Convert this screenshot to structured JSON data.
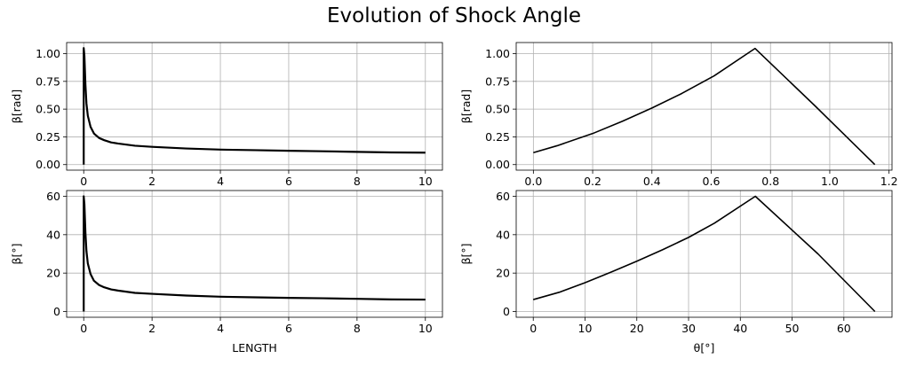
{
  "figure_title": "Evolution of Shock Angle",
  "chart_data": [
    {
      "id": "beta_rad_vs_length",
      "type": "line",
      "title": "",
      "xlabel": "",
      "ylabel": "β[rad]",
      "xlim": [
        -0.5,
        10.5
      ],
      "ylim": [
        -0.05,
        1.1
      ],
      "xticks": [
        0,
        2,
        4,
        6,
        8,
        10
      ],
      "xtick_labels": [
        "0",
        "2",
        "4",
        "6",
        "8",
        "10"
      ],
      "yticks": [
        0.0,
        0.25,
        0.5,
        0.75,
        1.0
      ],
      "ytick_labels": [
        "0.00",
        "0.25",
        "0.50",
        "0.75",
        "1.00"
      ],
      "grid": true,
      "series": [
        {
          "color": "#000000",
          "x": [
            0,
            0,
            0.02,
            0.05,
            0.08,
            0.12,
            0.2,
            0.3,
            0.45,
            0.6,
            0.8,
            1.0,
            1.5,
            2,
            3,
            4,
            5,
            6,
            7,
            8,
            9,
            10
          ],
          "y": [
            0.0,
            1.05,
            0.98,
            0.72,
            0.55,
            0.44,
            0.34,
            0.28,
            0.24,
            0.22,
            0.2,
            0.19,
            0.17,
            0.16,
            0.145,
            0.135,
            0.13,
            0.125,
            0.12,
            0.115,
            0.11,
            0.108
          ]
        }
      ]
    },
    {
      "id": "beta_rad_vs_theta_rad",
      "type": "line",
      "title": "",
      "xlabel": "",
      "ylabel": "β[rad]",
      "xlim": [
        -0.058,
        1.21
      ],
      "ylim": [
        -0.05,
        1.1
      ],
      "xticks": [
        0.0,
        0.2,
        0.4,
        0.6,
        0.8,
        1.0,
        1.2
      ],
      "xtick_labels": [
        "0.0",
        "0.2",
        "0.4",
        "0.6",
        "0.8",
        "1.0",
        "1.2"
      ],
      "yticks": [
        0.0,
        0.25,
        0.5,
        0.75,
        1.0
      ],
      "ytick_labels": [
        "0.00",
        "0.25",
        "0.50",
        "0.75",
        "1.00"
      ],
      "grid": true,
      "series": [
        {
          "color": "#000000",
          "x": [
            0.0,
            0.08,
            0.2,
            0.3,
            0.4,
            0.5,
            0.61,
            0.748,
            0.95,
            1.152
          ],
          "y": [
            0.108,
            0.17,
            0.28,
            0.39,
            0.51,
            0.64,
            0.8,
            1.047,
            0.53,
            0.0
          ]
        }
      ]
    },
    {
      "id": "beta_deg_vs_length",
      "type": "line",
      "title": "",
      "xlabel": "LENGTH",
      "ylabel": "β[°]",
      "xlim": [
        -0.5,
        10.5
      ],
      "ylim": [
        -3,
        63
      ],
      "xticks": [
        0,
        2,
        4,
        6,
        8,
        10
      ],
      "xtick_labels": [
        "0",
        "2",
        "4",
        "6",
        "8",
        "10"
      ],
      "yticks": [
        0,
        20,
        40,
        60
      ],
      "ytick_labels": [
        "0",
        "20",
        "40",
        "60"
      ],
      "grid": true,
      "series": [
        {
          "color": "#000000",
          "x": [
            0,
            0,
            0.02,
            0.05,
            0.08,
            0.12,
            0.2,
            0.3,
            0.45,
            0.6,
            0.8,
            1.0,
            1.5,
            2,
            3,
            4,
            5,
            6,
            7,
            8,
            9,
            10
          ],
          "y": [
            0,
            60,
            56,
            41,
            31.5,
            25,
            19.5,
            16,
            13.8,
            12.6,
            11.5,
            10.9,
            9.7,
            9.2,
            8.3,
            7.7,
            7.4,
            7.1,
            6.9,
            6.6,
            6.3,
            6.2
          ]
        }
      ]
    },
    {
      "id": "beta_deg_vs_theta_deg",
      "type": "line",
      "title": "",
      "xlabel": "θ[°]",
      "ylabel": "β[°]",
      "xlim": [
        -3.3,
        69.3
      ],
      "ylim": [
        -3,
        63
      ],
      "xticks": [
        0,
        10,
        20,
        30,
        40,
        50,
        60
      ],
      "xtick_labels": [
        "0",
        "10",
        "20",
        "30",
        "40",
        "50",
        "60"
      ],
      "yticks": [
        0,
        20,
        40,
        60
      ],
      "ytick_labels": [
        "0",
        "20",
        "40",
        "60"
      ],
      "grid": true,
      "series": [
        {
          "color": "#000000",
          "x": [
            0,
            5,
            10,
            15,
            20,
            25,
            30,
            35,
            42.9,
            55,
            66
          ],
          "y": [
            6.2,
            10,
            15,
            20.5,
            26.2,
            32.2,
            38.6,
            46,
            60,
            30,
            0
          ]
        }
      ]
    }
  ]
}
